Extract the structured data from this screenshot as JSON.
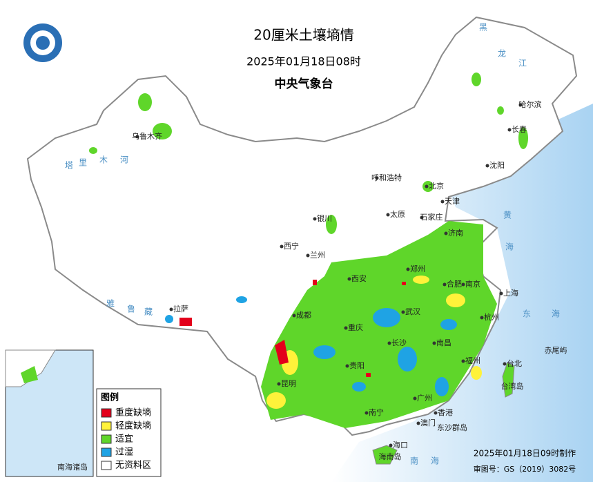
{
  "header": {
    "title": "20厘米土壤墒情",
    "date": "2025年01月18日08时",
    "agency": "中央气象台"
  },
  "legend": {
    "title": "图例",
    "items": [
      {
        "label": "重度缺墒",
        "color": "#e3001b"
      },
      {
        "label": "轻度缺墒",
        "color": "#fff23a"
      },
      {
        "label": "适宜",
        "color": "#5fd62a"
      },
      {
        "label": "过湿",
        "color": "#1fa3e4"
      },
      {
        "label": "无资料区",
        "color": "#ffffff"
      }
    ]
  },
  "footer": {
    "made": "2025年01月18日09时制作",
    "approval": "审图号：GS（2019）3082号"
  },
  "places": [
    "哈尔滨",
    "长春",
    "沈阳",
    "北京",
    "天津",
    "呼和浩特",
    "石家庄",
    "太原",
    "济南",
    "银川",
    "西宁",
    "兰州",
    "郑州",
    "西安",
    "合肥",
    "南京",
    "上海",
    "杭州",
    "武汉",
    "成都",
    "重庆",
    "长沙",
    "南昌",
    "贵阳",
    "福州",
    "昆明",
    "台北",
    "广州",
    "南宁",
    "香港",
    "澳门",
    "海口",
    "拉萨",
    "乌鲁木齐",
    "台湾岛",
    "海南岛",
    "赤尾屿",
    "东沙群岛",
    "南海诸岛"
  ],
  "seas": [
    "黑",
    "龙",
    "江",
    "黄",
    "海",
    "东",
    "海",
    "南",
    "海",
    "塔",
    "里",
    "木",
    "河",
    "雅",
    "鲁",
    "藏"
  ]
}
